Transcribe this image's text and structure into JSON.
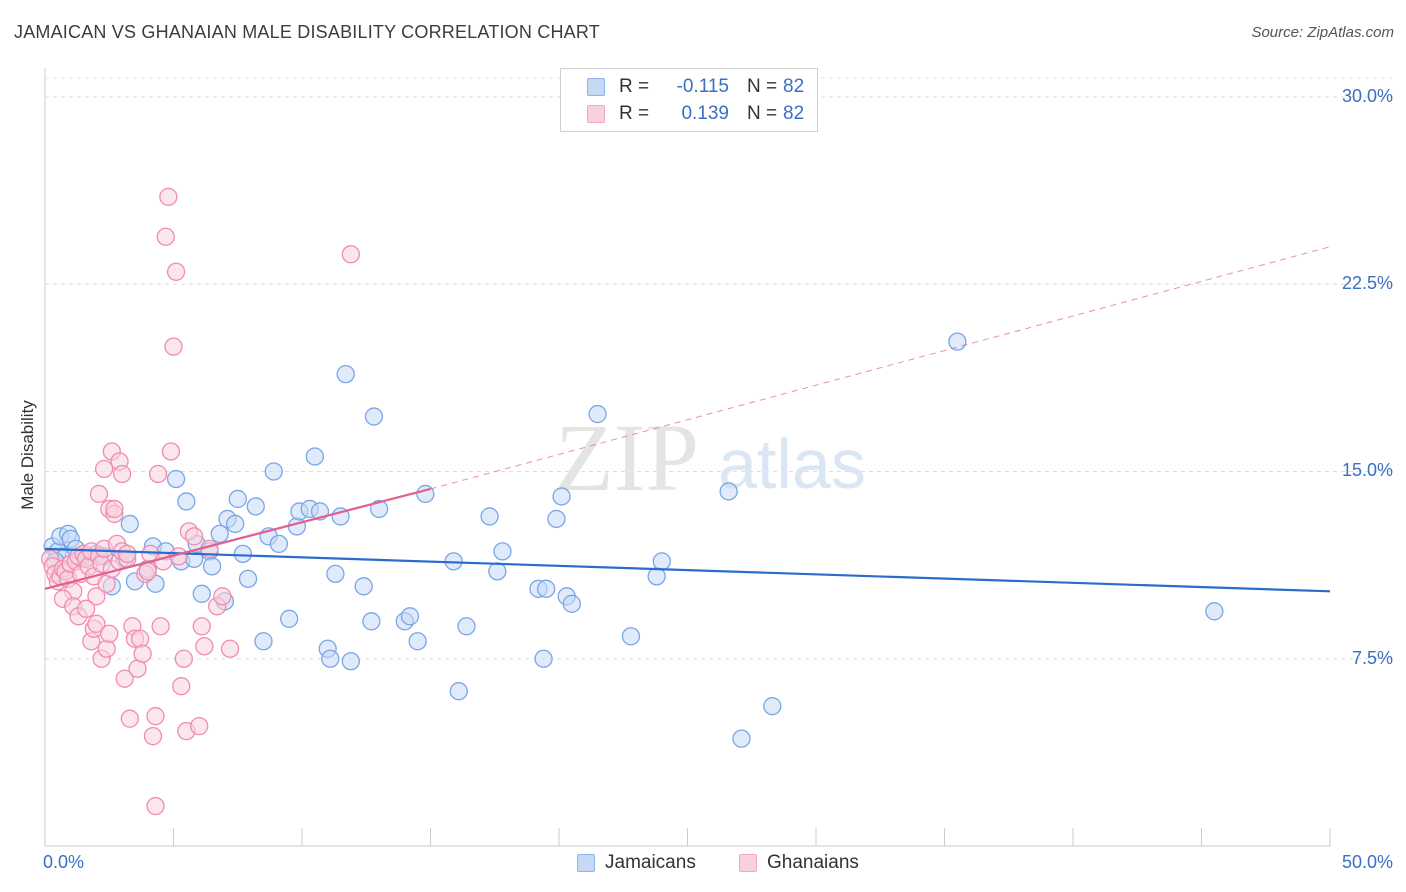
{
  "title": "JAMAICAN VS GHANAIAN MALE DISABILITY CORRELATION CHART",
  "source": "Source: ZipAtlas.com",
  "watermark": {
    "zip": "ZIP",
    "atlas": "atlas"
  },
  "legend": {
    "rows": [
      {
        "r_label": "R =",
        "r_value": "-0.115",
        "n_label": "N =",
        "n_value": "82",
        "color": "#8fb4ea",
        "fill": "#c5d9f5"
      },
      {
        "r_label": "R =",
        "r_value": "0.139",
        "n_label": "N =",
        "n_value": "82",
        "color": "#f2a8c0",
        "fill": "#f9d1de"
      }
    ]
  },
  "bottom_legend": [
    {
      "label": "Jamaicans",
      "color": "#8fb4ea",
      "fill": "#c5d9f5"
    },
    {
      "label": "Ghanaians",
      "color": "#f2a8c0",
      "fill": "#f9d1de"
    }
  ],
  "chart_data": {
    "type": "scatter",
    "title": "JAMAICAN VS GHANAIAN MALE DISABILITY CORRELATION CHART",
    "xlabel": "",
    "ylabel": "Male Disability",
    "xlim": [
      0,
      50
    ],
    "ylim": [
      0,
      31
    ],
    "x_tick_labels": [
      {
        "value": 0,
        "label": "0.0%"
      },
      {
        "value": 50,
        "label": "50.0%"
      }
    ],
    "y_ticks": [
      {
        "value": 7.5,
        "label": "7.5%"
      },
      {
        "value": 15,
        "label": "15.0%"
      },
      {
        "value": 22.5,
        "label": "22.5%"
      },
      {
        "value": 30,
        "label": "30.0%"
      }
    ],
    "grid": true,
    "series": [
      {
        "name": "Jamaicans",
        "color": "#7aa6e6",
        "fill": "#c5d9f5",
        "trend": {
          "x": [
            0,
            50
          ],
          "y": [
            11.9,
            10.2
          ],
          "color": "#2a6ccc",
          "style": "solid"
        },
        "points": [
          [
            0.3,
            12.0
          ],
          [
            0.5,
            11.8
          ],
          [
            0.6,
            12.4
          ],
          [
            0.8,
            11.6
          ],
          [
            0.9,
            12.5
          ],
          [
            1.0,
            12.3
          ],
          [
            1.2,
            11.9
          ],
          [
            1.4,
            11.5
          ],
          [
            1.7,
            11.6
          ],
          [
            2.0,
            11.7
          ],
          [
            2.3,
            11.6
          ],
          [
            2.6,
            10.4
          ],
          [
            3.1,
            11.5
          ],
          [
            3.3,
            12.9
          ],
          [
            3.5,
            10.6
          ],
          [
            4.0,
            11.1
          ],
          [
            4.2,
            12.0
          ],
          [
            4.3,
            10.5
          ],
          [
            4.7,
            11.8
          ],
          [
            5.1,
            14.7
          ],
          [
            5.3,
            11.4
          ],
          [
            5.5,
            13.8
          ],
          [
            5.8,
            11.5
          ],
          [
            5.9,
            12.1
          ],
          [
            6.1,
            10.1
          ],
          [
            6.4,
            11.8
          ],
          [
            6.5,
            11.2
          ],
          [
            6.8,
            12.5
          ],
          [
            7.0,
            9.8
          ],
          [
            7.1,
            13.1
          ],
          [
            7.4,
            12.9
          ],
          [
            7.5,
            13.9
          ],
          [
            7.7,
            11.7
          ],
          [
            7.9,
            10.7
          ],
          [
            8.2,
            13.6
          ],
          [
            8.5,
            8.2
          ],
          [
            8.7,
            12.4
          ],
          [
            8.9,
            15.0
          ],
          [
            9.1,
            12.1
          ],
          [
            9.5,
            9.1
          ],
          [
            9.8,
            12.8
          ],
          [
            9.9,
            13.4
          ],
          [
            10.3,
            13.5
          ],
          [
            10.5,
            15.6
          ],
          [
            10.7,
            13.4
          ],
          [
            11.0,
            7.9
          ],
          [
            11.1,
            7.5
          ],
          [
            11.3,
            10.9
          ],
          [
            11.5,
            13.2
          ],
          [
            11.7,
            18.9
          ],
          [
            11.9,
            7.4
          ],
          [
            12.4,
            10.4
          ],
          [
            12.7,
            9.0
          ],
          [
            12.8,
            17.2
          ],
          [
            13.0,
            13.5
          ],
          [
            14.0,
            9.0
          ],
          [
            14.2,
            9.2
          ],
          [
            14.5,
            8.2
          ],
          [
            14.8,
            14.1
          ],
          [
            15.9,
            11.4
          ],
          [
            16.1,
            6.2
          ],
          [
            16.4,
            8.8
          ],
          [
            17.3,
            13.2
          ],
          [
            17.6,
            11.0
          ],
          [
            17.8,
            11.8
          ],
          [
            19.2,
            10.3
          ],
          [
            19.4,
            7.5
          ],
          [
            19.5,
            10.3
          ],
          [
            19.9,
            13.1
          ],
          [
            20.1,
            14.0
          ],
          [
            20.3,
            10.0
          ],
          [
            20.5,
            9.7
          ],
          [
            21.5,
            17.3
          ],
          [
            22.8,
            8.4
          ],
          [
            23.8,
            10.8
          ],
          [
            24.0,
            11.4
          ],
          [
            26.6,
            14.2
          ],
          [
            27.1,
            4.3
          ],
          [
            28.3,
            5.6
          ],
          [
            35.5,
            20.2
          ],
          [
            45.5,
            9.4
          ],
          [
            0.4,
            11.4
          ]
        ]
      },
      {
        "name": "Ghanaians",
        "color": "#f08cb0",
        "fill": "#f9d1de",
        "trend": {
          "x": [
            0,
            15
          ],
          "y": [
            10.3,
            14.3
          ],
          "extend_to": [
            50,
            24.0
          ],
          "color": "#e0608f",
          "style": "solid",
          "extension_style": "dashed"
        },
        "points": [
          [
            0.2,
            11.5
          ],
          [
            0.3,
            11.2
          ],
          [
            0.4,
            10.9
          ],
          [
            0.5,
            10.6
          ],
          [
            0.6,
            10.8
          ],
          [
            0.7,
            11.1
          ],
          [
            0.8,
            11.0
          ],
          [
            0.9,
            10.7
          ],
          [
            1.0,
            11.3
          ],
          [
            1.1,
            10.2
          ],
          [
            1.2,
            11.4
          ],
          [
            1.3,
            11.6
          ],
          [
            1.4,
            10.9
          ],
          [
            1.5,
            11.7
          ],
          [
            1.6,
            11.5
          ],
          [
            1.7,
            11.2
          ],
          [
            1.8,
            11.8
          ],
          [
            1.9,
            10.8
          ],
          [
            2.0,
            10.0
          ],
          [
            2.1,
            11.6
          ],
          [
            2.2,
            11.3
          ],
          [
            2.3,
            11.9
          ],
          [
            2.4,
            10.5
          ],
          [
            2.5,
            13.5
          ],
          [
            2.6,
            11.1
          ],
          [
            2.7,
            13.3
          ],
          [
            2.8,
            12.1
          ],
          [
            2.9,
            11.4
          ],
          [
            3.0,
            11.8
          ],
          [
            3.2,
            11.5
          ],
          [
            0.7,
            9.9
          ],
          [
            1.1,
            9.6
          ],
          [
            1.3,
            9.2
          ],
          [
            1.6,
            9.5
          ],
          [
            1.8,
            8.2
          ],
          [
            1.9,
            8.7
          ],
          [
            2.0,
            8.9
          ],
          [
            2.1,
            14.1
          ],
          [
            2.2,
            7.5
          ],
          [
            2.3,
            15.1
          ],
          [
            2.4,
            7.9
          ],
          [
            2.5,
            8.5
          ],
          [
            2.6,
            15.8
          ],
          [
            2.7,
            13.5
          ],
          [
            2.9,
            15.4
          ],
          [
            3.0,
            14.9
          ],
          [
            3.1,
            6.7
          ],
          [
            3.2,
            11.7
          ],
          [
            3.3,
            5.1
          ],
          [
            3.4,
            8.8
          ],
          [
            3.5,
            8.3
          ],
          [
            3.6,
            7.1
          ],
          [
            3.7,
            8.3
          ],
          [
            3.8,
            7.7
          ],
          [
            3.9,
            10.9
          ],
          [
            4.0,
            11.0
          ],
          [
            4.1,
            11.7
          ],
          [
            4.2,
            4.4
          ],
          [
            4.3,
            5.2
          ],
          [
            4.4,
            14.9
          ],
          [
            4.5,
            8.8
          ],
          [
            4.6,
            11.4
          ],
          [
            4.7,
            24.4
          ],
          [
            4.8,
            26.0
          ],
          [
            4.9,
            15.8
          ],
          [
            5.0,
            20.0
          ],
          [
            5.1,
            23.0
          ],
          [
            5.2,
            11.6
          ],
          [
            5.3,
            6.4
          ],
          [
            5.4,
            7.5
          ],
          [
            5.5,
            4.6
          ],
          [
            5.6,
            12.6
          ],
          [
            5.8,
            12.4
          ],
          [
            6.0,
            4.8
          ],
          [
            6.1,
            8.8
          ],
          [
            6.2,
            8.0
          ],
          [
            6.4,
            11.9
          ],
          [
            6.7,
            9.6
          ],
          [
            6.9,
            10.0
          ],
          [
            7.2,
            7.9
          ],
          [
            11.9,
            23.7
          ],
          [
            4.3,
            1.6
          ]
        ]
      }
    ]
  }
}
